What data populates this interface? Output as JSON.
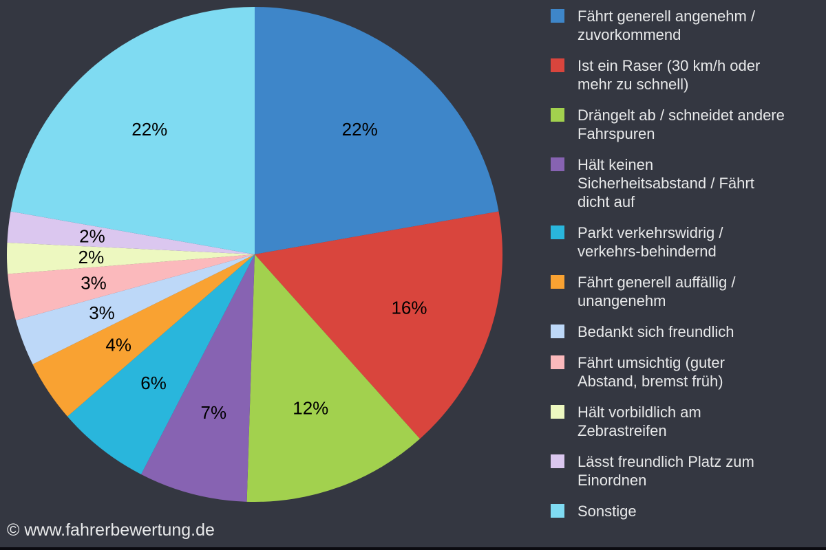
{
  "background_color": "#343741",
  "legend_text_color": "#E8E9EA",
  "footer": {
    "text": "© www.fahrerbewertung.de"
  },
  "chart_data": {
    "type": "pie",
    "title": "",
    "legend_position": "right",
    "start_angle_deg": 0,
    "direction": "clockwise",
    "value_label_color": "#000000",
    "slices": [
      {
        "label": "Fährt generell angenehm /\nzuvorkommend",
        "value_pct": 22,
        "display": "22%",
        "color": "#3E86C9"
      },
      {
        "label": "Ist ein Raser (30 km/h oder\nmehr zu schnell)",
        "value_pct": 16,
        "display": "16%",
        "color": "#D9453D"
      },
      {
        "label": "Drängelt ab / schneidet andere\nFahrspuren",
        "value_pct": 12,
        "display": "12%",
        "color": "#A2D14E"
      },
      {
        "label": "Hält keinen\nSicherheitsabstand / Fährt\ndicht auf",
        "value_pct": 7,
        "display": "7%",
        "color": "#8763B2"
      },
      {
        "label": "Parkt verkehrswidrig /\nverkehrs-behindernd",
        "value_pct": 6,
        "display": "6%",
        "color": "#29B6DC"
      },
      {
        "label": "Fährt generell auffällig /\nunangenehm",
        "value_pct": 4,
        "display": "4%",
        "color": "#F9A232"
      },
      {
        "label": "Bedankt sich freundlich",
        "value_pct": 3,
        "display": "3%",
        "color": "#BDD8F8"
      },
      {
        "label": "Fährt umsichtig (guter\nAbstand, bremst früh)",
        "value_pct": 3,
        "display": "3%",
        "color": "#FBB9BC"
      },
      {
        "label": "Hält vorbildlich am\nZebrastreifen",
        "value_pct": 2,
        "display": "2%",
        "color": "#EDF8C0"
      },
      {
        "label": "Lässt freundlich Platz zum\nEinordnen",
        "value_pct": 2,
        "display": "2%",
        "color": "#DBC7EF"
      },
      {
        "label": "Sonstige",
        "value_pct": 22,
        "display": "22%",
        "color": "#7FDBF2"
      }
    ]
  }
}
